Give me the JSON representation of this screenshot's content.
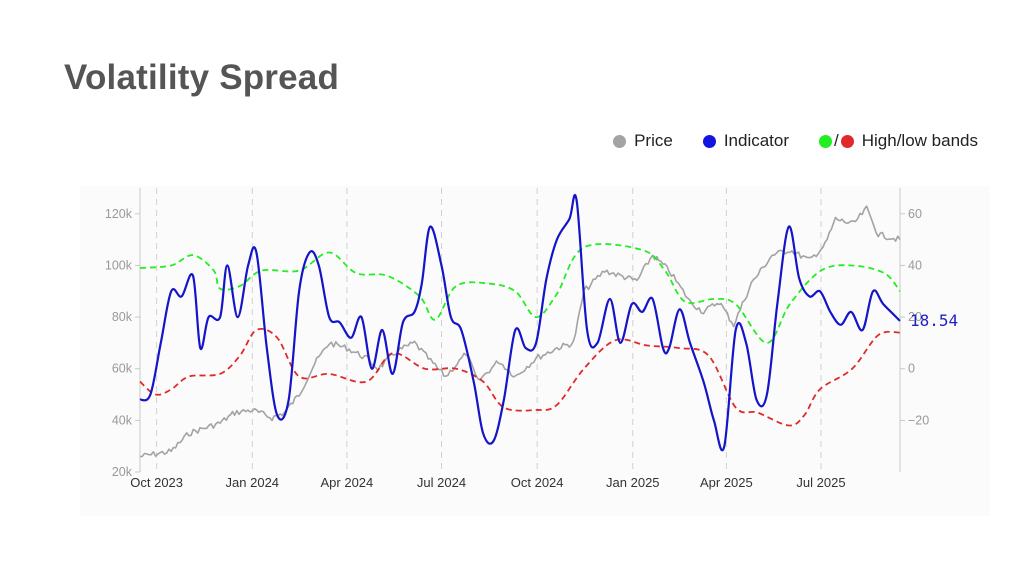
{
  "title": "Volatility Spread",
  "legend": {
    "price_label": "Price",
    "indicator_label": "Indicator",
    "bands_sep": "/",
    "bands_label": "High/low bands"
  },
  "colors": {
    "price": "#a3a3a3",
    "indicator": "#1414c8",
    "high_band": "#22ee22",
    "low_band": "#e02a2a",
    "grid": "#d0d0d0"
  },
  "chart_data": {
    "type": "line",
    "title": "Volatility Spread",
    "x_axis": {
      "tick_labels": [
        "Oct 2023",
        "Jan 2024",
        "Apr 2024",
        "Jul 2024",
        "Oct 2024",
        "Jan 2025",
        "Apr 2025",
        "Jul 2025"
      ],
      "range": [
        "2023-09-15",
        "2025-09-15"
      ]
    },
    "y_left": {
      "range": [
        20000,
        130000
      ],
      "ticks": [
        20000,
        40000,
        60000,
        80000,
        100000,
        120000
      ],
      "tick_labels": [
        "20k",
        "40k",
        "60k",
        "80k",
        "100k",
        "120k"
      ]
    },
    "y_right": {
      "range": [
        -40,
        70
      ],
      "ticks": [
        -20,
        0,
        20,
        40,
        60
      ],
      "tick_labels": [
        "−20",
        "0",
        "20",
        "40",
        "60"
      ]
    },
    "grid": "vertical dashed at x ticks",
    "legend_placement": "top-right",
    "last_value_label": "18.54",
    "series": [
      {
        "name": "Price",
        "axis": "left",
        "color": "#a3a3a3",
        "points": [
          [
            "2023-09-15",
            26000
          ],
          [
            "2023-10-15",
            28000
          ],
          [
            "2023-11-01",
            35000
          ],
          [
            "2023-12-01",
            39000
          ],
          [
            "2023-12-15",
            43000
          ],
          [
            "2024-01-01",
            44000
          ],
          [
            "2024-01-20",
            41000
          ],
          [
            "2024-02-01",
            43000
          ],
          [
            "2024-02-15",
            50000
          ],
          [
            "2024-03-01",
            62000
          ],
          [
            "2024-03-15",
            70000
          ],
          [
            "2024-04-01",
            68000
          ],
          [
            "2024-04-20",
            64000
          ],
          [
            "2024-05-01",
            60000
          ],
          [
            "2024-05-20",
            67000
          ],
          [
            "2024-06-05",
            70000
          ],
          [
            "2024-06-25",
            61000
          ],
          [
            "2024-07-05",
            57000
          ],
          [
            "2024-07-25",
            66000
          ],
          [
            "2024-08-05",
            55000
          ],
          [
            "2024-08-25",
            63000
          ],
          [
            "2024-09-10",
            57000
          ],
          [
            "2024-09-30",
            64000
          ],
          [
            "2024-10-20",
            68000
          ],
          [
            "2024-11-05",
            70000
          ],
          [
            "2024-11-15",
            90000
          ],
          [
            "2024-12-05",
            98000
          ],
          [
            "2024-12-20",
            96000
          ],
          [
            "2025-01-05",
            94000
          ],
          [
            "2025-01-20",
            104000
          ],
          [
            "2025-02-05",
            98000
          ],
          [
            "2025-02-25",
            86000
          ],
          [
            "2025-03-10",
            82000
          ],
          [
            "2025-03-25",
            86000
          ],
          [
            "2025-04-08",
            77000
          ],
          [
            "2025-04-25",
            93000
          ],
          [
            "2025-05-15",
            104000
          ],
          [
            "2025-06-01",
            106000
          ],
          [
            "2025-06-20",
            102000
          ],
          [
            "2025-07-05",
            108000
          ],
          [
            "2025-07-15",
            118000
          ],
          [
            "2025-08-01",
            116000
          ],
          [
            "2025-08-14",
            122000
          ],
          [
            "2025-08-25",
            112000
          ],
          [
            "2025-09-15",
            110000
          ]
        ]
      },
      {
        "name": "Indicator",
        "axis": "right",
        "color": "#1414c8",
        "points": [
          [
            "2023-09-15",
            -12
          ],
          [
            "2023-09-25",
            -10
          ],
          [
            "2023-10-05",
            10
          ],
          [
            "2023-10-15",
            30
          ],
          [
            "2023-10-25",
            28
          ],
          [
            "2023-11-05",
            36
          ],
          [
            "2023-11-12",
            8
          ],
          [
            "2023-11-20",
            20
          ],
          [
            "2023-12-01",
            20
          ],
          [
            "2023-12-08",
            40
          ],
          [
            "2023-12-18",
            20
          ],
          [
            "2023-12-28",
            40
          ],
          [
            "2024-01-05",
            45
          ],
          [
            "2024-01-15",
            8
          ],
          [
            "2024-01-25",
            -18
          ],
          [
            "2024-02-05",
            -12
          ],
          [
            "2024-02-15",
            30
          ],
          [
            "2024-02-25",
            45
          ],
          [
            "2024-03-05",
            40
          ],
          [
            "2024-03-15",
            20
          ],
          [
            "2024-03-25",
            18
          ],
          [
            "2024-04-05",
            12
          ],
          [
            "2024-04-15",
            20
          ],
          [
            "2024-04-25",
            0
          ],
          [
            "2024-05-05",
            15
          ],
          [
            "2024-05-15",
            -2
          ],
          [
            "2024-05-25",
            18
          ],
          [
            "2024-06-05",
            22
          ],
          [
            "2024-06-12",
            33
          ],
          [
            "2024-06-20",
            55
          ],
          [
            "2024-07-01",
            40
          ],
          [
            "2024-07-10",
            20
          ],
          [
            "2024-07-20",
            15
          ],
          [
            "2024-08-01",
            -5
          ],
          [
            "2024-08-10",
            -25
          ],
          [
            "2024-08-20",
            -28
          ],
          [
            "2024-08-30",
            -12
          ],
          [
            "2024-09-10",
            15
          ],
          [
            "2024-09-20",
            8
          ],
          [
            "2024-09-30",
            10
          ],
          [
            "2024-10-10",
            35
          ],
          [
            "2024-10-20",
            50
          ],
          [
            "2024-11-01",
            58
          ],
          [
            "2024-11-08",
            65
          ],
          [
            "2024-11-18",
            15
          ],
          [
            "2024-11-28",
            10
          ],
          [
            "2024-12-10",
            27
          ],
          [
            "2024-12-20",
            10
          ],
          [
            "2024-12-31",
            25
          ],
          [
            "2025-01-10",
            22
          ],
          [
            "2025-01-20",
            27
          ],
          [
            "2025-01-30",
            8
          ],
          [
            "2025-02-05",
            8
          ],
          [
            "2025-02-15",
            23
          ],
          [
            "2025-02-25",
            10
          ],
          [
            "2025-03-10",
            -5
          ],
          [
            "2025-03-20",
            -20
          ],
          [
            "2025-03-30",
            -30
          ],
          [
            "2025-04-10",
            15
          ],
          [
            "2025-04-20",
            10
          ],
          [
            "2025-04-30",
            -12
          ],
          [
            "2025-05-10",
            -10
          ],
          [
            "2025-05-20",
            25
          ],
          [
            "2025-05-31",
            55
          ],
          [
            "2025-06-10",
            35
          ],
          [
            "2025-06-20",
            28
          ],
          [
            "2025-06-30",
            30
          ],
          [
            "2025-07-10",
            22
          ],
          [
            "2025-07-20",
            17
          ],
          [
            "2025-07-30",
            22
          ],
          [
            "2025-08-10",
            15
          ],
          [
            "2025-08-20",
            30
          ],
          [
            "2025-08-30",
            25
          ],
          [
            "2025-09-15",
            18.54
          ]
        ]
      },
      {
        "name": "High band",
        "axis": "right",
        "color": "#22ee22",
        "dash": true,
        "points": [
          [
            "2023-09-15",
            39
          ],
          [
            "2023-10-15",
            40
          ],
          [
            "2023-11-05",
            44
          ],
          [
            "2023-11-25",
            38
          ],
          [
            "2023-12-01",
            31
          ],
          [
            "2023-12-20",
            32
          ],
          [
            "2024-01-10",
            38
          ],
          [
            "2024-02-15",
            38
          ],
          [
            "2024-03-15",
            45
          ],
          [
            "2024-04-10",
            37
          ],
          [
            "2024-05-10",
            36
          ],
          [
            "2024-06-10",
            28
          ],
          [
            "2024-06-25",
            19
          ],
          [
            "2024-07-15",
            32
          ],
          [
            "2024-08-15",
            33
          ],
          [
            "2024-09-10",
            30
          ],
          [
            "2024-09-30",
            20
          ],
          [
            "2024-10-20",
            29
          ],
          [
            "2024-11-15",
            47
          ],
          [
            "2025-01-10",
            46
          ],
          [
            "2025-02-01",
            38
          ],
          [
            "2025-02-20",
            26
          ],
          [
            "2025-03-20",
            27
          ],
          [
            "2025-04-10",
            25
          ],
          [
            "2025-05-10",
            10
          ],
          [
            "2025-06-01",
            25
          ],
          [
            "2025-07-01",
            38
          ],
          [
            "2025-07-31",
            40
          ],
          [
            "2025-08-31",
            37
          ],
          [
            "2025-09-15",
            30
          ]
        ]
      },
      {
        "name": "Low band",
        "axis": "right",
        "color": "#e02a2a",
        "dash": true,
        "points": [
          [
            "2023-09-15",
            -5
          ],
          [
            "2023-09-30",
            -10
          ],
          [
            "2023-10-15",
            -8
          ],
          [
            "2023-11-01",
            -3
          ],
          [
            "2023-12-01",
            -2
          ],
          [
            "2023-12-20",
            5
          ],
          [
            "2024-01-05",
            15
          ],
          [
            "2024-01-25",
            12
          ],
          [
            "2024-02-15",
            -3
          ],
          [
            "2024-03-15",
            -2
          ],
          [
            "2024-04-20",
            -5
          ],
          [
            "2024-05-15",
            6
          ],
          [
            "2024-06-15",
            0
          ],
          [
            "2024-07-15",
            0
          ],
          [
            "2024-08-10",
            -5
          ],
          [
            "2024-08-30",
            -15
          ],
          [
            "2024-09-30",
            -16
          ],
          [
            "2024-10-20",
            -14
          ],
          [
            "2024-11-15",
            0
          ],
          [
            "2024-12-15",
            11
          ],
          [
            "2025-01-15",
            9
          ],
          [
            "2025-02-15",
            8
          ],
          [
            "2025-03-15",
            5
          ],
          [
            "2025-04-10",
            -15
          ],
          [
            "2025-05-01",
            -17
          ],
          [
            "2025-05-31",
            -22
          ],
          [
            "2025-06-15",
            -18
          ],
          [
            "2025-06-30",
            -8
          ],
          [
            "2025-07-31",
            0
          ],
          [
            "2025-08-25",
            13
          ],
          [
            "2025-09-15",
            14
          ]
        ]
      }
    ]
  }
}
